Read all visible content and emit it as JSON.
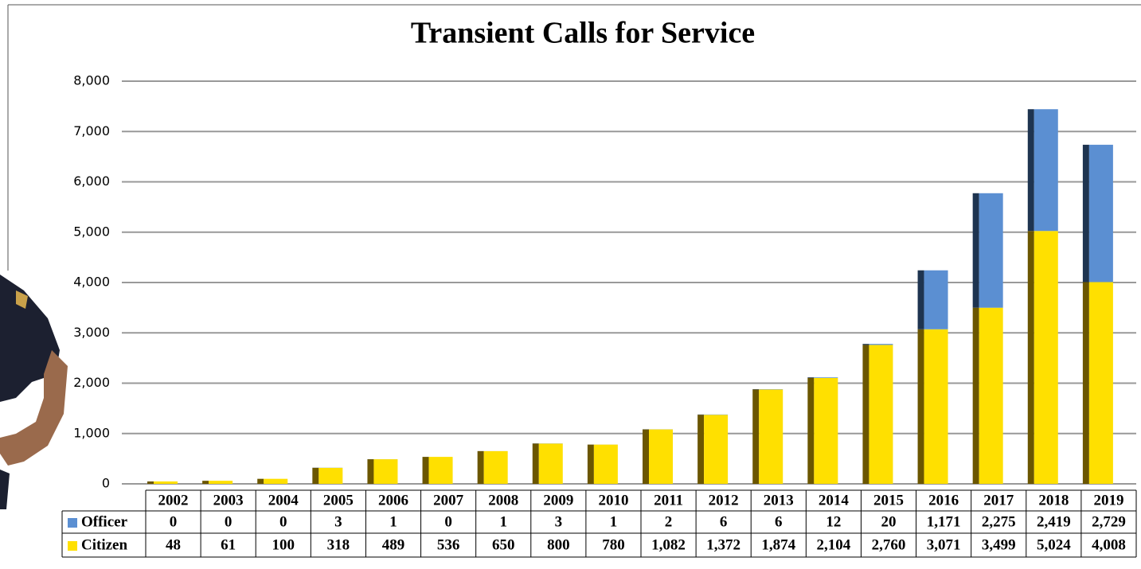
{
  "chart_data": {
    "type": "stacked_bar",
    "title": "Transient Calls for Service",
    "categories": [
      "2002",
      "2003",
      "2004",
      "2005",
      "2006",
      "2007",
      "2008",
      "2009",
      "2010",
      "2011",
      "2012",
      "2013",
      "2014",
      "2015",
      "2016",
      "2017",
      "2018",
      "2019"
    ],
    "series": [
      {
        "name": "Officer",
        "color": "#5b8fd2",
        "values": [
          0,
          0,
          0,
          3,
          1,
          0,
          1,
          3,
          1,
          2,
          6,
          6,
          12,
          20,
          1171,
          2275,
          2419,
          2729
        ],
        "value_labels": [
          "0",
          "0",
          "0",
          "3",
          "1",
          "0",
          "1",
          "3",
          "1",
          "2",
          "6",
          "6",
          "12",
          "20",
          "1,171",
          "2,275",
          "2,419",
          "2,729"
        ]
      },
      {
        "name": "Citizen",
        "color": "#ffe000",
        "values": [
          48,
          61,
          100,
          318,
          489,
          536,
          650,
          800,
          780,
          1082,
          1372,
          1874,
          2104,
          2760,
          3071,
          3499,
          5024,
          4008
        ],
        "value_labels": [
          "48",
          "61",
          "100",
          "318",
          "489",
          "536",
          "650",
          "800",
          "780",
          "1,082",
          "1,372",
          "1,874",
          "2,104",
          "2,760",
          "3,071",
          "3,499",
          "5,024",
          "4,008"
        ]
      }
    ],
    "ylim": [
      0,
      8000
    ],
    "yticks": [
      0,
      {
        "value": 1000,
        "label": "1,000"
      },
      {
        "value": 2000,
        "label": "2,000"
      },
      {
        "value": 3000,
        "label": "3,000"
      },
      {
        "value": 4000,
        "label": "4,000"
      },
      {
        "value": 5000,
        "label": "5,000"
      },
      {
        "value": 6000,
        "label": "6,000"
      },
      {
        "value": 7000,
        "label": "7,000"
      },
      {
        "value": 8000,
        "label": "8,000"
      }
    ],
    "grid": true
  }
}
